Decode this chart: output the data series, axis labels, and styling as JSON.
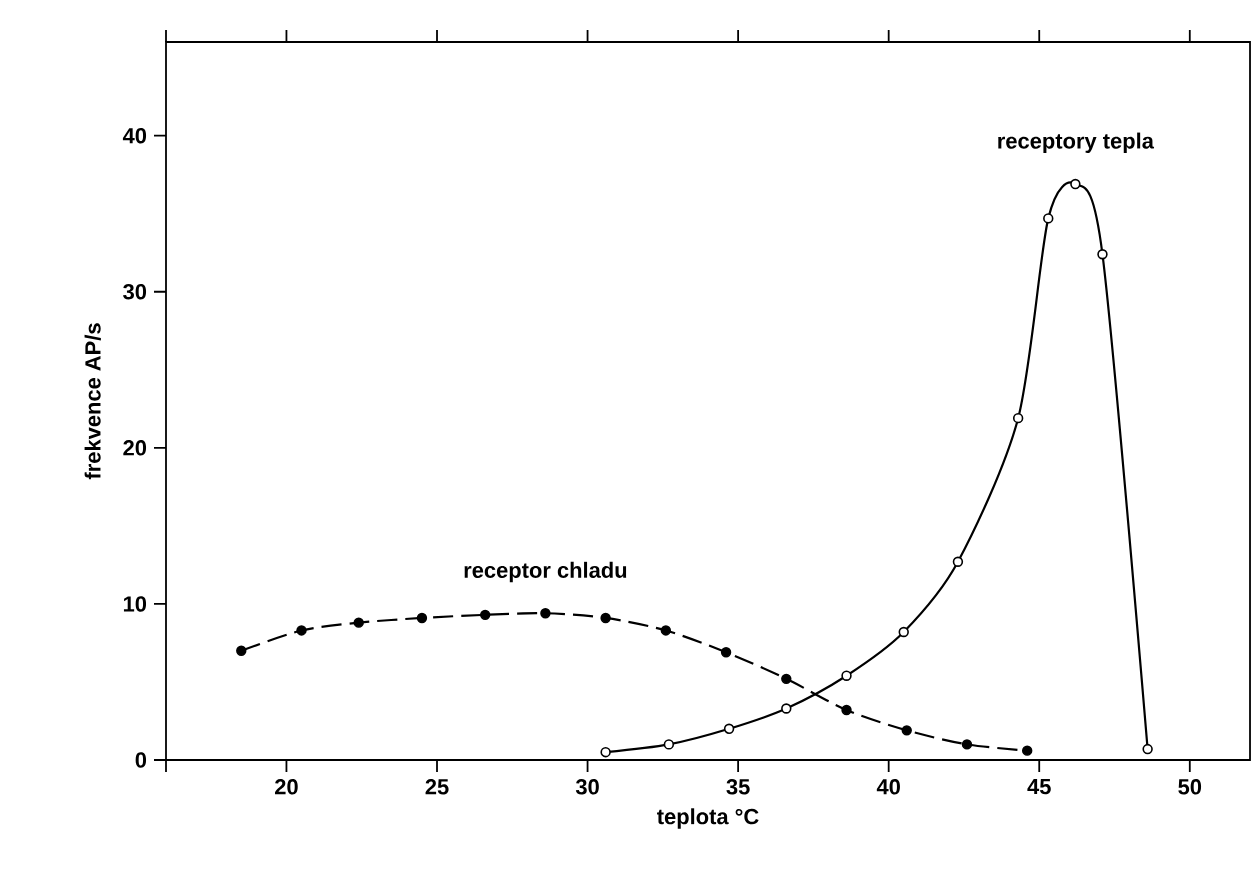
{
  "chart_data": {
    "type": "line",
    "xlabel": "teplota °C",
    "ylabel": "frekvence AP/s",
    "xlim": [
      16,
      52
    ],
    "ylim": [
      0,
      46
    ],
    "xticks": [
      {
        "value": 16,
        "label": null
      },
      20,
      25,
      30,
      35,
      40,
      45,
      50
    ],
    "yticks": [
      0,
      10,
      20,
      30,
      40
    ],
    "grid": false,
    "marker": "circle",
    "series": [
      {
        "name": "receptor chladu",
        "color": "#000000",
        "line_style": "dashed",
        "x": [
          18.5,
          20.5,
          22.4,
          24.5,
          26.6,
          28.6,
          30.6,
          32.6,
          34.6,
          36.6,
          38.6,
          40.6,
          42.6,
          44.6
        ],
        "values": [
          7.0,
          8.3,
          8.8,
          9.1,
          9.3,
          9.4,
          9.1,
          8.3,
          6.9,
          5.2,
          3.2,
          1.9,
          1.0,
          0.6
        ]
      },
      {
        "name": "receptory tepla",
        "color": "#000000",
        "line_style": "solid",
        "x": [
          30.6,
          32.7,
          34.7,
          36.6,
          38.6,
          40.5,
          42.3,
          44.3,
          45.3,
          46.2,
          47.1,
          48.6
        ],
        "values": [
          0.5,
          1.0,
          2.0,
          3.3,
          5.4,
          8.2,
          12.7,
          21.9,
          34.7,
          36.9,
          32.4,
          0.7
        ]
      }
    ]
  }
}
